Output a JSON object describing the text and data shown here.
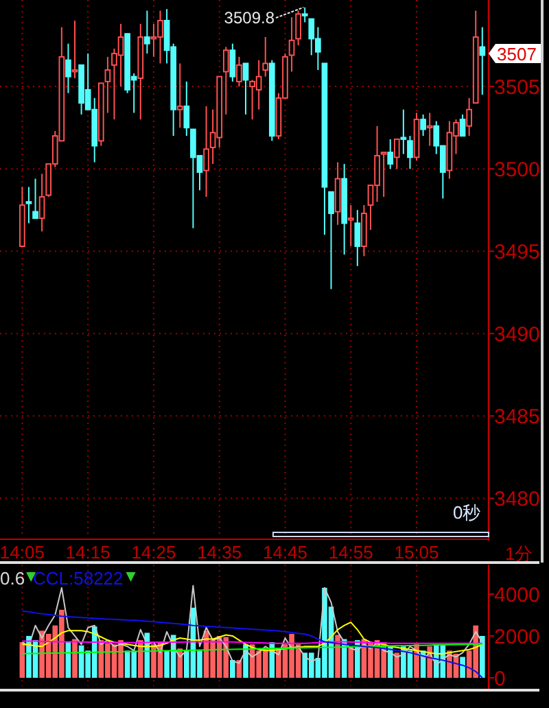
{
  "chart_data": [
    {
      "type": "candlestick",
      "categories": [
        "14:05",
        null,
        null,
        null,
        null,
        null,
        null,
        null,
        null,
        null,
        "14:15",
        null,
        null,
        null,
        null,
        null,
        null,
        null,
        null,
        null,
        "14:25",
        null,
        null,
        null,
        null,
        null,
        null,
        null,
        null,
        null,
        "14:35",
        null,
        null,
        null,
        null,
        null,
        null,
        null,
        null,
        null,
        "14:45",
        null,
        null,
        null,
        null,
        null,
        null,
        null,
        null,
        null,
        "14:55",
        null,
        null,
        null,
        null,
        null,
        null,
        null,
        null,
        null,
        "15:05",
        null,
        null,
        null,
        null,
        null,
        null,
        null,
        null,
        null,
        null
      ],
      "ohlc": [
        [
          3495.3,
          3498.9,
          3495.3,
          3497.8
        ],
        [
          3498.0,
          3498.9,
          3496.7,
          3497.9
        ],
        [
          3497.4,
          3499.4,
          3497.0,
          3497.0
        ],
        [
          3497.0,
          3499.7,
          3496.2,
          3498.3
        ],
        [
          3498.4,
          3500.3,
          3498.3,
          3500.3
        ],
        [
          3500.3,
          3502.3,
          3500.1,
          3502.0
        ],
        [
          3501.7,
          3508.6,
          3501.7,
          3506.8
        ],
        [
          3506.6,
          3507.6,
          3504.6,
          3505.6
        ],
        [
          3505.9,
          3509.0,
          3505.5,
          3506.0
        ],
        [
          3506.3,
          3506.3,
          3503.3,
          3504.0
        ],
        [
          3504.8,
          3507.0,
          3503.6,
          3503.6
        ],
        [
          3503.6,
          3504.3,
          3500.4,
          3501.4
        ],
        [
          3501.7,
          3505.2,
          3501.4,
          3505.2
        ],
        [
          3505.3,
          3506.8,
          3503.4,
          3506.0
        ],
        [
          3506.3,
          3507.3,
          3503.0,
          3507.0
        ],
        [
          3506.9,
          3508.8,
          3505.0,
          3508.0
        ],
        [
          3508.2,
          3508.2,
          3504.6,
          3504.8
        ],
        [
          3505.6,
          3505.8,
          3503.4,
          3505.4
        ],
        [
          3505.5,
          3508.8,
          3503.0,
          3508.0
        ],
        [
          3508.0,
          3509.6,
          3507.0,
          3507.6
        ],
        [
          3507.9,
          3508.8,
          3506.8,
          3508.0
        ],
        [
          3508.0,
          3509.6,
          3506.4,
          3509.0
        ],
        [
          3509.0,
          3509.7,
          3506.4,
          3507.2
        ],
        [
          3507.4,
          3507.6,
          3502.0,
          3503.6
        ],
        [
          3503.6,
          3506.4,
          3502.5,
          3503.8
        ],
        [
          3503.8,
          3505.3,
          3502.0,
          3502.5
        ],
        [
          3502.4,
          3502.4,
          3496.4,
          3500.7
        ],
        [
          3500.8,
          3500.8,
          3498.7,
          3499.8
        ],
        [
          3499.9,
          3503.8,
          3498.3,
          3501.2
        ],
        [
          3501.3,
          3503.6,
          3500.3,
          3502.2
        ],
        [
          3501.9,
          3505.6,
          3501.3,
          3505.6
        ],
        [
          3505.9,
          3507.4,
          3503.3,
          3507.2
        ],
        [
          3507.2,
          3507.6,
          3505.3,
          3505.6
        ],
        [
          3505.3,
          3506.8,
          3505.0,
          3506.3
        ],
        [
          3506.4,
          3506.4,
          3503.3,
          3505.4
        ],
        [
          3505.0,
          3505.4,
          3503.0,
          3505.3
        ],
        [
          3504.8,
          3506.6,
          3503.6,
          3505.6
        ],
        [
          3506.0,
          3508.0,
          3505.6,
          3506.4
        ],
        [
          3506.4,
          3506.6,
          3501.7,
          3502.0
        ],
        [
          3502.0,
          3504.6,
          3501.8,
          3504.3
        ],
        [
          3504.3,
          3507.0,
          3504.3,
          3506.8
        ],
        [
          3506.9,
          3509.2,
          3505.9,
          3507.8
        ],
        [
          3507.9,
          3509.6,
          3507.5,
          3509.4
        ],
        [
          3509.4,
          3509.8,
          3508.9,
          3509.3
        ],
        [
          3509.1,
          3509.1,
          3506.9,
          3507.9
        ],
        [
          3507.9,
          3508.6,
          3506.0,
          3507.1
        ],
        [
          3506.4,
          3506.4,
          3496.0,
          3498.9
        ],
        [
          3498.6,
          3498.6,
          3492.7,
          3497.3
        ],
        [
          3497.4,
          3500.4,
          3496.6,
          3499.4
        ],
        [
          3499.4,
          3500.3,
          3494.8,
          3496.7
        ],
        [
          3496.9,
          3497.8,
          3495.3,
          3497.0
        ],
        [
          3496.7,
          3497.5,
          3494.1,
          3495.3
        ],
        [
          3495.3,
          3497.8,
          3494.7,
          3497.3
        ],
        [
          3497.8,
          3499.0,
          3496.3,
          3499.0
        ],
        [
          3499.0,
          3502.6,
          3498.0,
          3500.8
        ],
        [
          3500.9,
          3501.0,
          3498.3,
          3501.0
        ],
        [
          3501.0,
          3501.8,
          3500.0,
          3500.3
        ],
        [
          3500.7,
          3501.8,
          3500.0,
          3501.8
        ],
        [
          3501.9,
          3503.6,
          3500.9,
          3501.8
        ],
        [
          3501.7,
          3502.0,
          3500.0,
          3500.7
        ],
        [
          3500.7,
          3503.4,
          3500.5,
          3503.0
        ],
        [
          3503.0,
          3503.3,
          3502.0,
          3502.4
        ],
        [
          3502.5,
          3503.4,
          3501.4,
          3502.6
        ],
        [
          3502.6,
          3502.9,
          3500.9,
          3501.4
        ],
        [
          3501.4,
          3501.4,
          3498.2,
          3499.8
        ],
        [
          3499.9,
          3502.9,
          3499.4,
          3502.2
        ],
        [
          3502.0,
          3503.0,
          3500.9,
          3502.8
        ],
        [
          3503.0,
          3503.3,
          3502.0,
          3502.0
        ],
        [
          3502.6,
          3504.3,
          3502.0,
          3503.6
        ],
        [
          3504.0,
          3509.6,
          3504.0,
          3508.0
        ],
        [
          3507.4,
          3508.6,
          3504.5,
          3506.9
        ]
      ],
      "colors": [
        "#ff5050",
        "#54fcfc",
        "#54fcfc",
        "#ff5050",
        "#ff5050",
        "#ff5050",
        "#ff5050",
        "#54fcfc",
        "#ff5050",
        "#54fcfc",
        "#54fcfc",
        "#54fcfc",
        "#ff5050",
        "#ff5050",
        "#ff5050",
        "#ff5050",
        "#54fcfc",
        "#54fcfc",
        "#ff5050",
        "#54fcfc",
        "#ff5050",
        "#ff5050",
        "#54fcfc",
        "#54fcfc",
        "#ff5050",
        "#54fcfc",
        "#54fcfc",
        "#54fcfc",
        "#ff5050",
        "#ff5050",
        "#ff5050",
        "#ff5050",
        "#54fcfc",
        "#ff5050",
        "#54fcfc",
        "#ff5050",
        "#ff5050",
        "#ff5050",
        "#54fcfc",
        "#ff5050",
        "#ff5050",
        "#ff5050",
        "#ff5050",
        "#54fcfc",
        "#54fcfc",
        "#54fcfc",
        "#54fcfc",
        "#54fcfc",
        "#ff5050",
        "#54fcfc",
        "#ff5050",
        "#54fcfc",
        "#ff5050",
        "#ff5050",
        "#ff5050",
        "#ff5050",
        "#54fcfc",
        "#ff5050",
        "#54fcfc",
        "#54fcfc",
        "#ff5050",
        "#54fcfc",
        "#ff5050",
        "#54fcfc",
        "#54fcfc",
        "#ff5050",
        "#ff5050",
        "#54fcfc",
        "#ff5050",
        "#ff5050",
        "#54fcfc"
      ],
      "ylim": [
        3477.6,
        3510.25
      ],
      "yticks": [
        3480,
        3485,
        3490,
        3495,
        3500,
        3505
      ],
      "grid": true,
      "annotations": [
        "3509.8",
        {
          "text": "3507",
          "y": 3507
        },
        "0秒",
        "1分"
      ]
    },
    {
      "type": "bar",
      "categories": [
        null,
        null,
        null,
        null,
        null,
        null,
        null,
        null,
        null,
        null,
        null,
        null,
        null,
        null,
        null,
        null,
        null,
        null,
        null,
        null,
        null,
        null,
        null,
        null,
        null,
        null,
        null,
        null,
        null,
        null,
        null,
        null,
        null,
        null,
        null,
        null,
        null,
        null,
        null,
        null,
        null,
        null,
        null,
        null,
        null,
        null,
        null,
        null,
        null,
        null,
        null,
        null,
        null,
        null,
        null,
        null,
        null,
        null,
        null,
        null,
        null,
        null,
        null,
        null,
        null,
        null,
        null,
        null,
        null,
        null,
        null
      ],
      "series": [
        {
          "type": "bar",
          "values": [
            1700,
            2000,
            1800,
            2250,
            2100,
            2500,
            3250,
            1700,
            1850,
            1550,
            1300,
            2450,
            1800,
            1650,
            1600,
            1800,
            1300,
            1300,
            1800,
            2150,
            1600,
            1700,
            1300,
            2050,
            1400,
            1300,
            3350,
            1300,
            2250,
            1800,
            2000,
            1950,
            850,
            850,
            1600,
            1600,
            1300,
            1400,
            1700,
            1400,
            1600,
            2100,
            1600,
            1200,
            1200,
            950,
            4300,
            3400,
            2050,
            1850,
            1500,
            1800,
            1850,
            1700,
            1800,
            1700,
            1500,
            1200,
            1500,
            1300,
            1600,
            1300,
            1500,
            1600,
            1600,
            1300,
            1150,
            1000,
            1300,
            2500,
            2000
          ],
          "colors": [
            "#ff6060",
            "#54fcfc",
            "#54fcfc",
            "#ff6060",
            "#ff6060",
            "#ff6060",
            "#ff6060",
            "#54fcfc",
            "#ff6060",
            "#54fcfc",
            "#54fcfc",
            "#54fcfc",
            "#ff6060",
            "#ff6060",
            "#ff6060",
            "#ff6060",
            "#54fcfc",
            "#54fcfc",
            "#ff6060",
            "#54fcfc",
            "#ff6060",
            "#ff6060",
            "#54fcfc",
            "#54fcfc",
            "#ff6060",
            "#54fcfc",
            "#54fcfc",
            "#54fcfc",
            "#ff6060",
            "#ff6060",
            "#ff6060",
            "#ff6060",
            "#54fcfc",
            "#ff6060",
            "#54fcfc",
            "#ff6060",
            "#ff6060",
            "#ff6060",
            "#54fcfc",
            "#ff6060",
            "#ff6060",
            "#ff6060",
            "#ff6060",
            "#54fcfc",
            "#54fcfc",
            "#54fcfc",
            "#54fcfc",
            "#54fcfc",
            "#ff6060",
            "#54fcfc",
            "#ff6060",
            "#54fcfc",
            "#ff6060",
            "#ff6060",
            "#ff6060",
            "#ff6060",
            "#54fcfc",
            "#ff6060",
            "#54fcfc",
            "#54fcfc",
            "#ff6060",
            "#54fcfc",
            "#ff6060",
            "#54fcfc",
            "#54fcfc",
            "#ff6060",
            "#ff6060",
            "#54fcfc",
            "#ff6060",
            "#ff6060",
            "#54fcfc"
          ]
        },
        {
          "type": "line",
          "color": "#c8c8c8",
          "values": [
            1700,
            1500,
            2500,
            1900,
            2500,
            3000,
            4300,
            2400,
            2000,
            1600,
            2400,
            2500,
            1600,
            1800,
            1500,
            1600,
            1500,
            1300,
            2300,
            1600,
            1700,
            1200,
            2200,
            1500,
            1000,
            1300,
            4400,
            1500,
            2400,
            1800,
            1900,
            1500,
            800,
            700,
            1300,
            1000,
            1200,
            1500,
            1300,
            1100,
            1900,
            1400,
            1500,
            1000,
            800,
            900,
            4300,
            3600,
            2200,
            1700,
            1400,
            1300,
            1600,
            1400,
            1700,
            1300,
            1200,
            1000,
            1100,
            1500,
            1300,
            900,
            1200,
            600,
            900,
            1100,
            1000,
            1200,
            1600,
            2200,
            1700
          ]
        },
        {
          "type": "line",
          "color": "#ffff00",
          "values": [
            1600,
            1580,
            1520,
            1500,
            1700,
            1900,
            2150,
            2250,
            2250,
            2250,
            2200,
            2100,
            1950,
            1800,
            1700,
            1650,
            1600,
            1550,
            1500,
            1500,
            1500,
            1550,
            1650,
            1800,
            1900,
            1850,
            1800,
            1800,
            1850,
            1850,
            1950,
            2050,
            2000,
            1800,
            1600,
            1450,
            1350,
            1300,
            1300,
            1350,
            1400,
            1450,
            1450,
            1500,
            1500,
            1500,
            1650,
            1950,
            2300,
            2500,
            2650,
            2300,
            1850,
            1700,
            1650,
            1600,
            1500,
            1450,
            1400,
            1350,
            1300,
            1250,
            1200,
            1150,
            1150,
            1200,
            1250,
            1300,
            1350,
            1450,
            1600
          ]
        },
        {
          "type": "line",
          "color": "#ff00ff",
          "values": [
            1750,
            1750,
            1750,
            1740,
            1730,
            1720,
            1720,
            1720,
            1720,
            1710,
            1700,
            1700,
            1700,
            1690,
            1690,
            1680,
            1680,
            1680,
            1680,
            1690,
            1700,
            1700,
            1700,
            1700,
            1700,
            1710,
            1720,
            1720,
            1720,
            1720,
            1720,
            1720,
            1710,
            1700,
            1690,
            1680,
            1670,
            1660,
            1650,
            1650,
            1650,
            1650,
            1650,
            1650,
            1660,
            1680,
            1700,
            1720,
            1720,
            1720,
            1710,
            1700,
            1690,
            1680,
            1670,
            1660,
            1650,
            1650,
            1650,
            1650,
            1650,
            1650,
            1650,
            1650,
            1650,
            1650,
            1650,
            1650,
            1650,
            1650,
            1650
          ]
        },
        {
          "type": "line",
          "color": "#00ff00",
          "values": [
            1150,
            1160,
            1160,
            1170,
            1180,
            1180,
            1190,
            1200,
            1200,
            1210,
            1220,
            1220,
            1230,
            1240,
            1240,
            1250,
            1250,
            1260,
            1270,
            1270,
            1280,
            1290,
            1290,
            1300,
            1310,
            1310,
            1320,
            1330,
            1330,
            1340,
            1350,
            1350,
            1360,
            1370,
            1370,
            1380,
            1390,
            1390,
            1400,
            1410,
            1410,
            1420,
            1430,
            1430,
            1440,
            1450,
            1450,
            1460,
            1470,
            1470,
            1480,
            1490,
            1490,
            1500,
            1510,
            1510,
            1520,
            1530,
            1530,
            1540,
            1550,
            1550,
            1560,
            1570,
            1570,
            1580,
            1590,
            1590,
            1600,
            1610,
            1610
          ]
        },
        {
          "type": "line",
          "name": "CCL:58222",
          "color": "#1010f0",
          "values": [
            3190,
            3150,
            3100,
            3060,
            3020,
            2980,
            2940,
            2920,
            2900,
            2880,
            2860,
            2840,
            2820,
            2800,
            2790,
            2780,
            2760,
            2750,
            2730,
            2700,
            2680,
            2650,
            2620,
            2600,
            2570,
            2540,
            2500,
            2480,
            2460,
            2440,
            2420,
            2400,
            2380,
            2360,
            2340,
            2320,
            2300,
            2280,
            2260,
            2240,
            2200,
            2160,
            2120,
            2090,
            2000,
            1850,
            1720,
            1680,
            1640,
            1600,
            1560,
            1530,
            1500,
            1470,
            1440,
            1400,
            1360,
            1300,
            1260,
            1200,
            1120,
            1040,
            960,
            900,
            840,
            760,
            680,
            600,
            480,
            300,
            0
          ]
        }
      ],
      "ylim": [
        -400,
        5400
      ],
      "yticks": [
        0,
        2000,
        4000
      ],
      "grid": "x",
      "tick_labels": "y",
      "annotations": [
        "0.6"
      ]
    }
  ]
}
